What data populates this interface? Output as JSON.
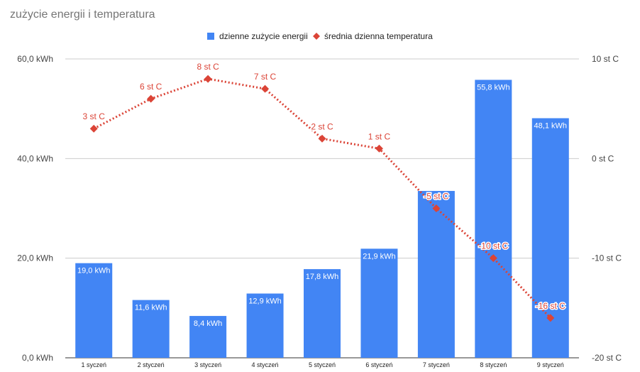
{
  "chart_data": {
    "type": "bar",
    "title": "zużycie energii i temperatura",
    "categories": [
      "1 syczeń",
      "2 styczeń",
      "3 styczeń",
      "4 styczeń",
      "5 styczeń",
      "6 styczeń",
      "7 styczeń",
      "8 styczeń",
      "9 styczeń"
    ],
    "series": [
      {
        "name": "dzienne zużycie energii",
        "type": "bar",
        "axis": "left",
        "color": "#4285f4",
        "values": [
          19.0,
          11.6,
          8.4,
          12.9,
          17.8,
          21.9,
          33.5,
          55.8,
          48.1
        ],
        "labels": [
          "19,0 kWh",
          "11,6 kWh",
          "8,4 kWh",
          "12,9 kWh",
          "17,8 kWh",
          "21,9 kWh",
          "",
          "55,8 kWh",
          "48,1 kWh"
        ]
      },
      {
        "name": "średnia dzienna temperatura",
        "type": "line",
        "axis": "right",
        "color": "#db4437",
        "values": [
          3,
          6,
          8,
          7,
          2,
          1,
          -5,
          -10,
          -16
        ],
        "labels": [
          "3 st C",
          "6 st C",
          "8 st C",
          "7 st C",
          "2 st C",
          "1 st C",
          "-5 st C",
          "-10 st C",
          "-16 st C"
        ]
      }
    ],
    "left_axis": {
      "ylim": [
        0,
        60
      ],
      "ticks": [
        0,
        20,
        40,
        60
      ],
      "tick_labels": [
        "0,0 kWh",
        "20,0 kWh",
        "40,0 kWh",
        "60,0 kWh"
      ]
    },
    "right_axis": {
      "ylim": [
        -20,
        10
      ],
      "ticks": [
        -20,
        -10,
        0,
        10
      ],
      "tick_labels": [
        "-20 st C",
        "-10 st C",
        "0 st C",
        "10 st C"
      ]
    },
    "legend_position": "top-center",
    "grid": true
  }
}
